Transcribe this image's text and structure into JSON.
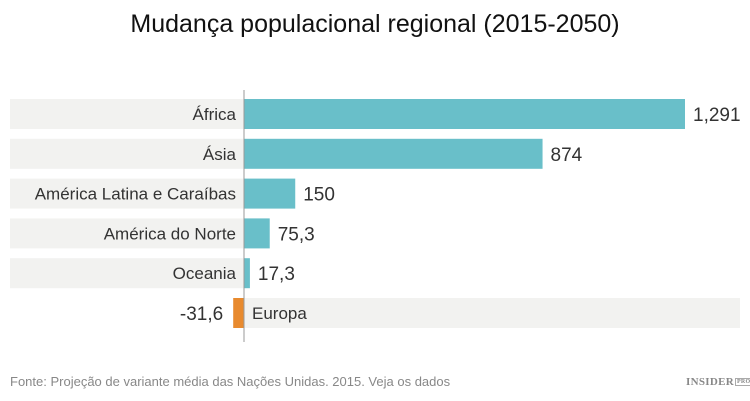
{
  "chart_data": {
    "type": "bar",
    "orientation": "horizontal",
    "title": "Mudança populacional regional (2015-2050)",
    "categories": [
      "África",
      "Ásia",
      "América Latina e Caraíbas",
      "América do Norte",
      "Oceania",
      "Europa"
    ],
    "values": [
      1291,
      874,
      150,
      75.3,
      17.3,
      -31.6
    ],
    "value_labels": [
      "1,291",
      "874",
      "150",
      "75,3",
      "17,3",
      "-31,6"
    ],
    "colors": {
      "positive": "#69bfc9",
      "negative": "#e88a2e",
      "row_background": "#f2f2f0",
      "axis": "#999999"
    },
    "xlim": [
      -31.6,
      1291
    ],
    "grid": false
  },
  "footer": {
    "source": "Fonte: Projeção de variante média das Nações Unidas. 2015. Veja os dados",
    "logo": "INSIDER",
    "logo_badge": "PRO"
  }
}
